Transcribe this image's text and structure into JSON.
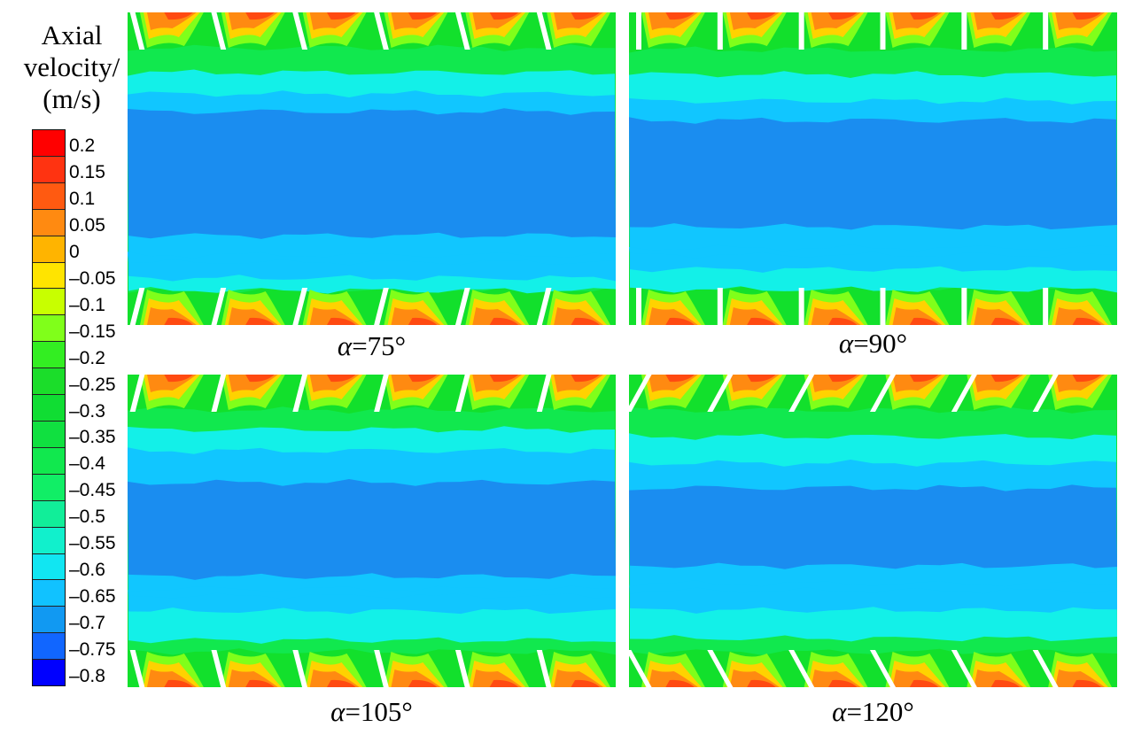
{
  "legend": {
    "title_lines": [
      "Axial",
      "velocity/",
      "(m/s)"
    ],
    "levels": [
      "0.2",
      "0.15",
      "0.1",
      "0.05",
      "0",
      "-0.05",
      "-0.1",
      "-0.15",
      "-0.2",
      "-0.25",
      "-0.3",
      "-0.35",
      "-0.4",
      "-0.45",
      "-0.5",
      "-0.55",
      "-0.6",
      "-0.65",
      "-0.7",
      "-0.75",
      "-0.8"
    ],
    "colors": [
      "#ff0000",
      "#ff3311",
      "#ff5a11",
      "#ff8a11",
      "#ffb400",
      "#ffe400",
      "#c8ff00",
      "#80ff1a",
      "#33ee22",
      "#1bdd2a",
      "#10dd33",
      "#10e040",
      "#11e84e",
      "#11ee66",
      "#11ee99",
      "#11f0cc",
      "#11e6f2",
      "#11c2ff",
      "#1199f2",
      "#1166ff",
      "#0000ff"
    ]
  },
  "panels": [
    {
      "symbol": "α",
      "label": "=75°",
      "angle": 75
    },
    {
      "symbol": "α",
      "label": "=90°",
      "angle": 90
    },
    {
      "symbol": "α",
      "label": "=105°",
      "angle": 105
    },
    {
      "symbol": "α",
      "label": "=120°",
      "angle": 120
    }
  ]
}
